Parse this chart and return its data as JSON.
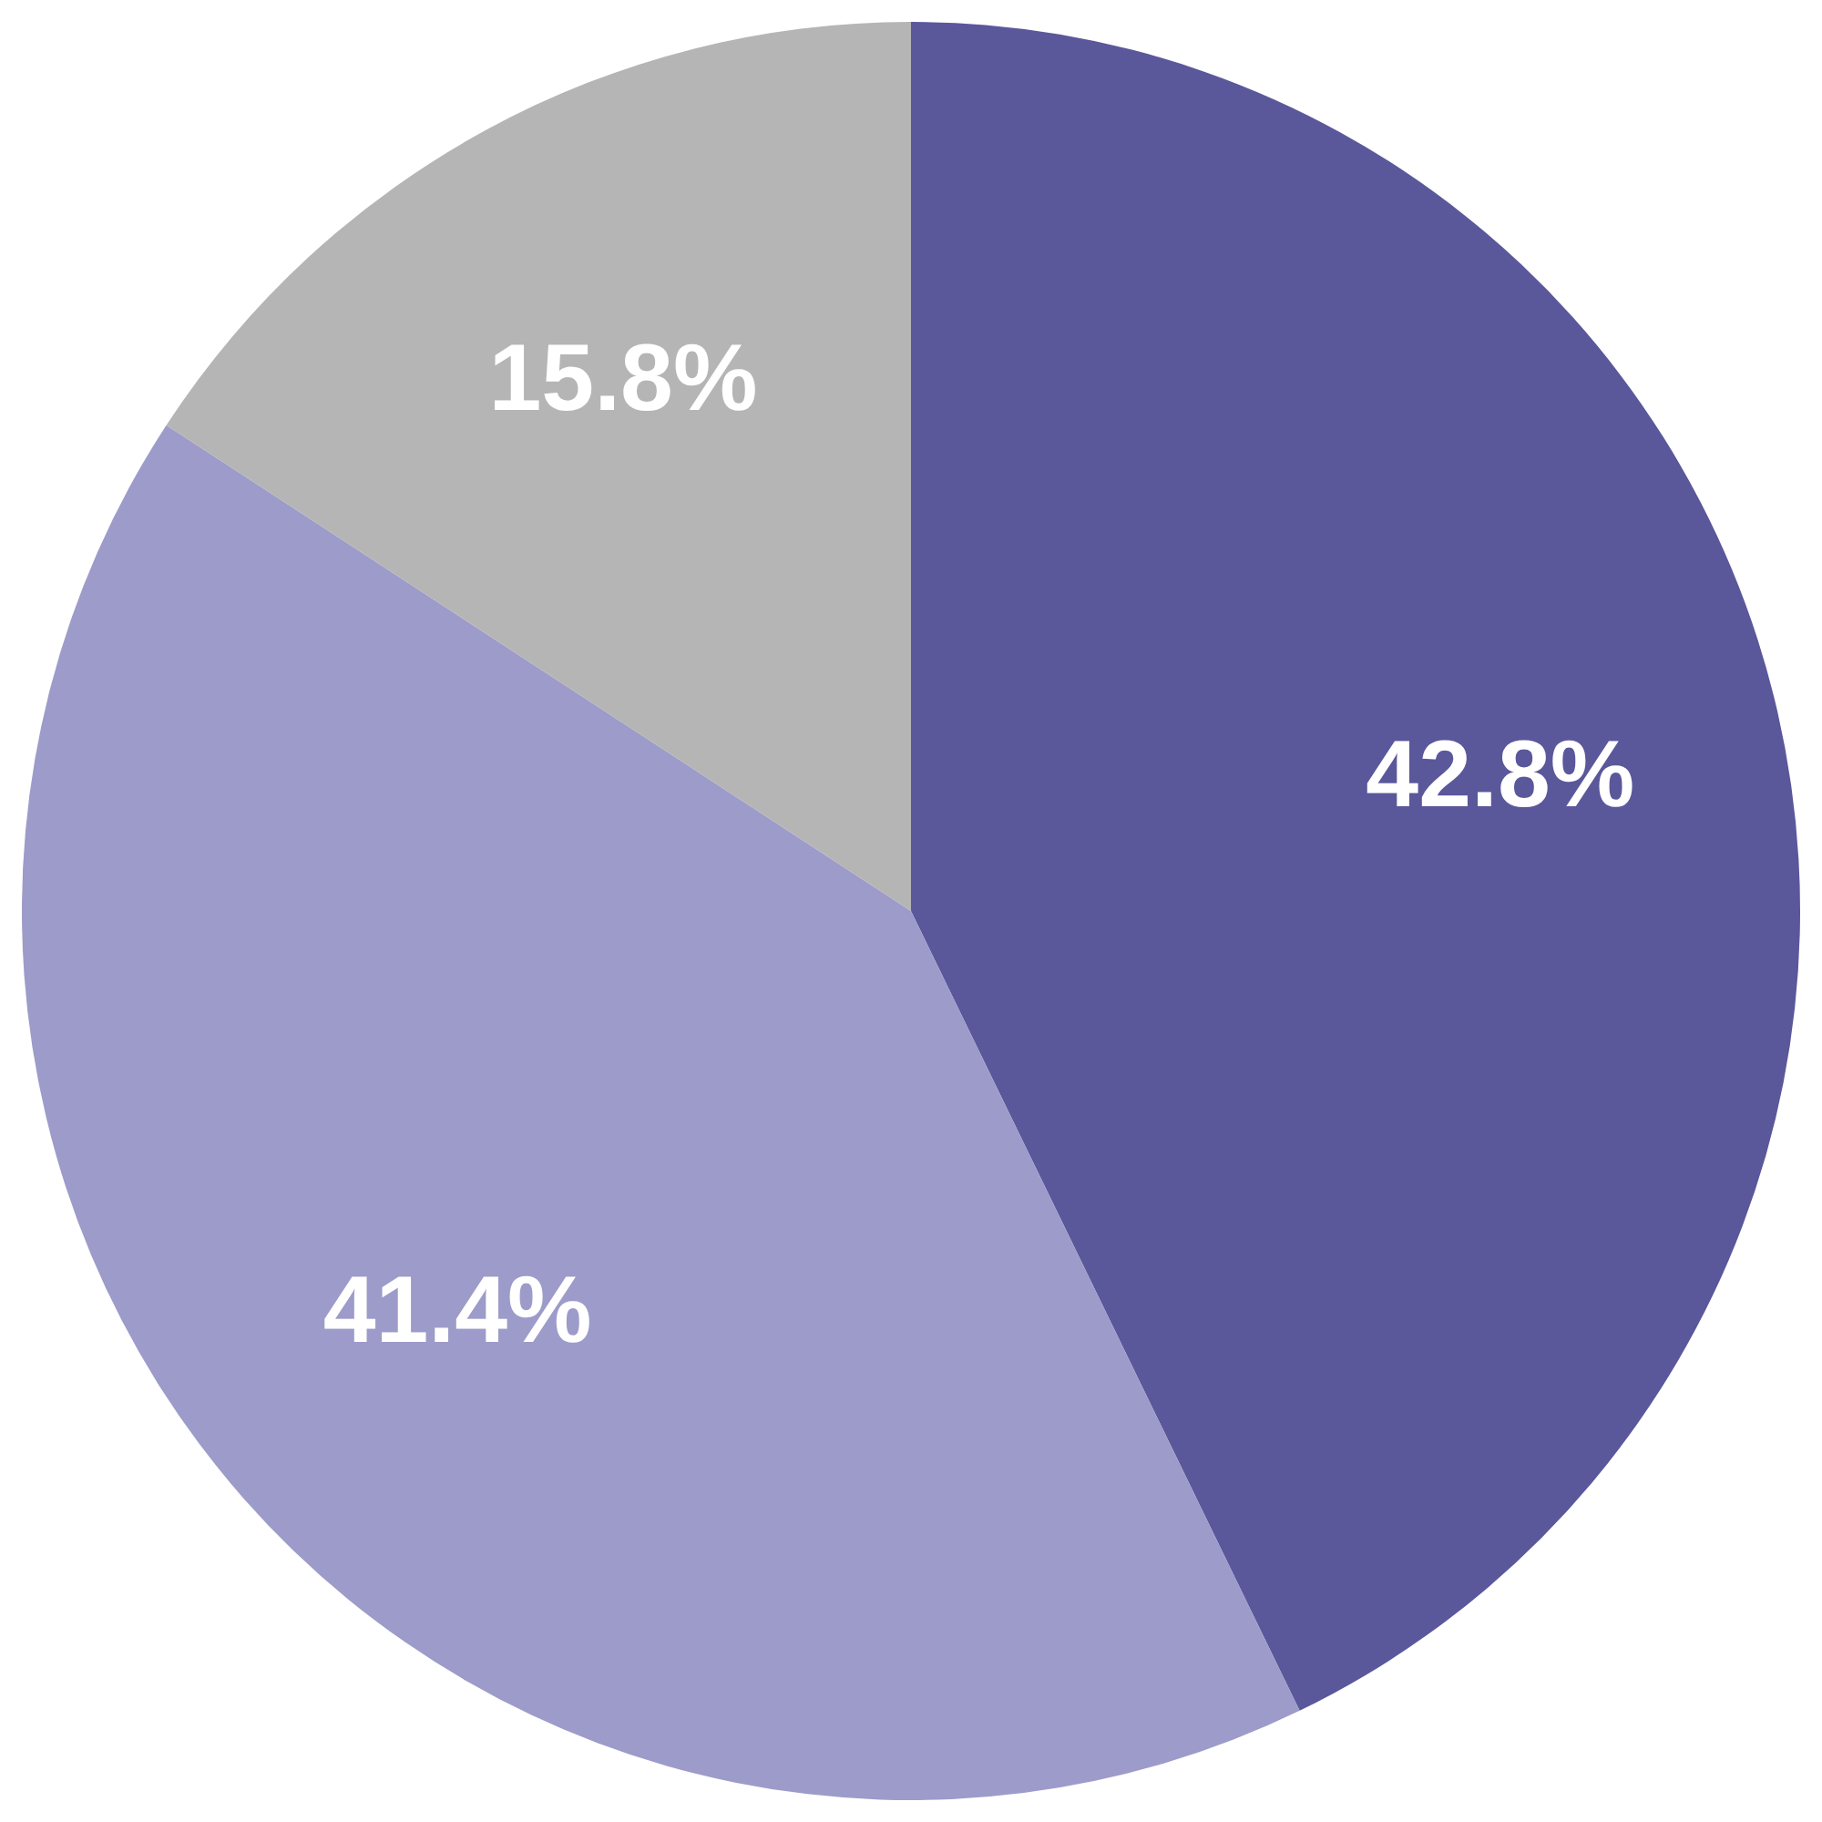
{
  "chart_data": {
    "type": "pie",
    "categories": [
      null,
      null,
      null
    ],
    "values": [
      42.8,
      41.4,
      15.8
    ],
    "value_labels": [
      "42.8%",
      "41.4%",
      "15.8%"
    ],
    "colors": [
      "#5a579b",
      "#9d9bc9",
      "#b5b5b5"
    ],
    "legend": false
  }
}
